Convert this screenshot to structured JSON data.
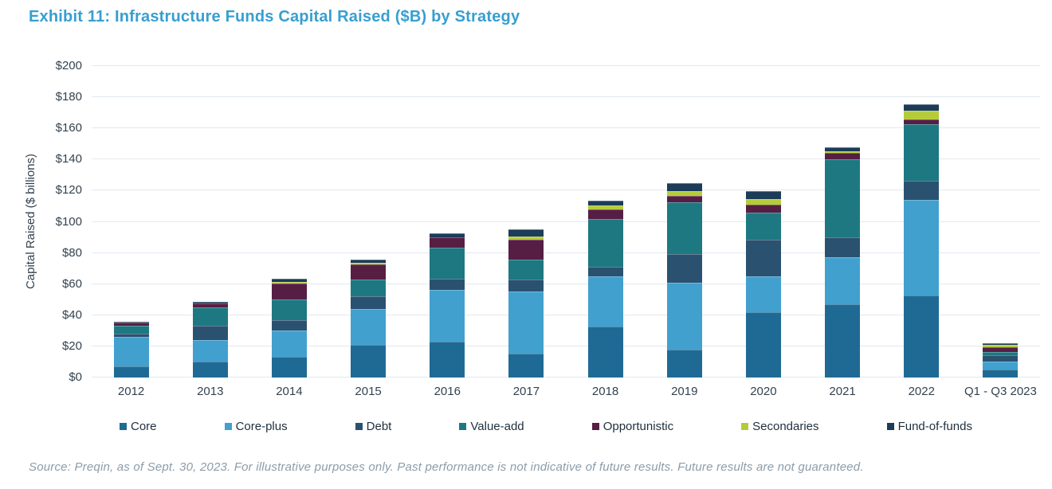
{
  "title": "Exhibit 11: Infrastructure Funds Capital Raised ($B) by Strategy",
  "title_color": "#379fd0",
  "source_note": "Source: Preqin, as of Sept. 30, 2023. For illustrative purposes only. Past performance is not indicative of future results. Future results are not guaranteed.",
  "chart_data": {
    "type": "bar",
    "stacked": true,
    "title": "Exhibit 11: Infrastructure Funds Capital Raised ($B) by Strategy",
    "xlabel": "",
    "ylabel": "Capital Raised ($ billions)",
    "ylim": [
      0,
      200
    ],
    "ytick_step": 20,
    "y_tick_labels": [
      "$0",
      "$20",
      "$40",
      "$60",
      "$80",
      "$100",
      "$120",
      "$140",
      "$160",
      "$180",
      "$200"
    ],
    "grid": true,
    "legend_position": "bottom",
    "categories": [
      "2012",
      "2013",
      "2014",
      "2015",
      "2016",
      "2017",
      "2018",
      "2019",
      "2020",
      "2021",
      "2022",
      "Q1 - Q3 2023"
    ],
    "series": [
      {
        "name": "Core",
        "color": "#1f6a94",
        "values": [
          7,
          10,
          13.5,
          21,
          23,
          15.5,
          33,
          18,
          42,
          47,
          52.5,
          5
        ]
      },
      {
        "name": "Core-plus",
        "color": "#41a0ce",
        "values": [
          19,
          14,
          16.5,
          23,
          33.5,
          40,
          32,
          43,
          23,
          30,
          61.5,
          5
        ]
      },
      {
        "name": "Debt",
        "color": "#2a5270",
        "values": [
          2,
          9.5,
          7,
          8,
          7,
          7.5,
          6,
          18.5,
          23.5,
          13,
          12.5,
          4.5
        ]
      },
      {
        "name": "Value-add",
        "color": "#1d7881",
        "values": [
          5.5,
          11.5,
          13,
          11,
          20,
          12.5,
          31,
          33,
          17.5,
          50,
          36,
          2
        ]
      },
      {
        "name": "Opportunistic",
        "color": "#571e44",
        "values": [
          2,
          2.5,
          10.5,
          9.5,
          6.5,
          13,
          6,
          4,
          5,
          4.5,
          3.5,
          3
        ]
      },
      {
        "name": "Secondaries",
        "color": "#b5cc3a",
        "values": [
          0,
          0,
          1,
          1,
          0,
          2,
          2.5,
          3,
          3.5,
          1,
          5.5,
          1.5
        ]
      },
      {
        "name": "Fund-of-funds",
        "color": "#1d3c59",
        "values": [
          0.5,
          1,
          2,
          2,
          2.5,
          4.5,
          3,
          5.5,
          5,
          2.5,
          4,
          1
        ]
      }
    ]
  }
}
